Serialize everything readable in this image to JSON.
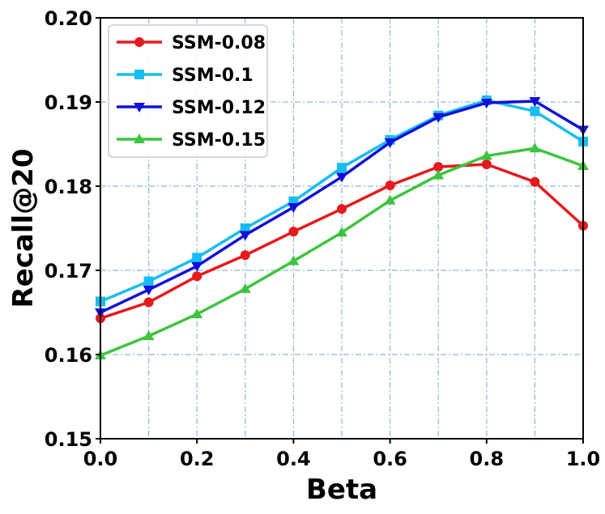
{
  "chart_data": {
    "type": "line",
    "xlabel": "Beta",
    "ylabel": "Recall@20",
    "xlim": [
      0.0,
      1.0
    ],
    "ylim": [
      0.15,
      0.2
    ],
    "xticks": [
      0.0,
      0.2,
      0.4,
      0.6,
      0.8,
      1.0
    ],
    "xtick_labels": [
      "0.0",
      "0.2",
      "0.4",
      "0.6",
      "0.8",
      "1.0"
    ],
    "yticks": [
      0.15,
      0.16,
      0.17,
      0.18,
      0.19,
      0.2
    ],
    "ytick_labels": [
      "0.15",
      "0.16",
      "0.17",
      "0.18",
      "0.19",
      "0.20"
    ],
    "grid": true,
    "legend_position": "top-left",
    "x": [
      0.0,
      0.1,
      0.2,
      0.3,
      0.4,
      0.5,
      0.6,
      0.7,
      0.8,
      0.9,
      1.0
    ],
    "series": [
      {
        "name": "SSM-0.08",
        "color": "#e41a1c",
        "marker": "circle",
        "values": [
          0.1643,
          0.1662,
          0.1693,
          0.1718,
          0.1746,
          0.1773,
          0.1801,
          0.1823,
          0.1826,
          0.1805,
          0.1753
        ]
      },
      {
        "name": "SSM-0.1",
        "color": "#17bdf0",
        "marker": "square",
        "values": [
          0.1663,
          0.1687,
          0.1715,
          0.175,
          0.1782,
          0.1822,
          0.1855,
          0.1884,
          0.1902,
          0.1889,
          0.1853
        ]
      },
      {
        "name": "SSM-0.12",
        "color": "#1010d8",
        "marker": "triangle-down",
        "values": [
          0.165,
          0.1677,
          0.1705,
          0.1742,
          0.1775,
          0.1811,
          0.1852,
          0.1882,
          0.1899,
          0.1901,
          0.1867
        ]
      },
      {
        "name": "SSM-0.15",
        "color": "#3ec43e",
        "marker": "triangle-up",
        "values": [
          0.1599,
          0.1622,
          0.1648,
          0.1678,
          0.1711,
          0.1745,
          0.1783,
          0.1813,
          0.1836,
          0.1845,
          0.1824
        ]
      }
    ]
  }
}
